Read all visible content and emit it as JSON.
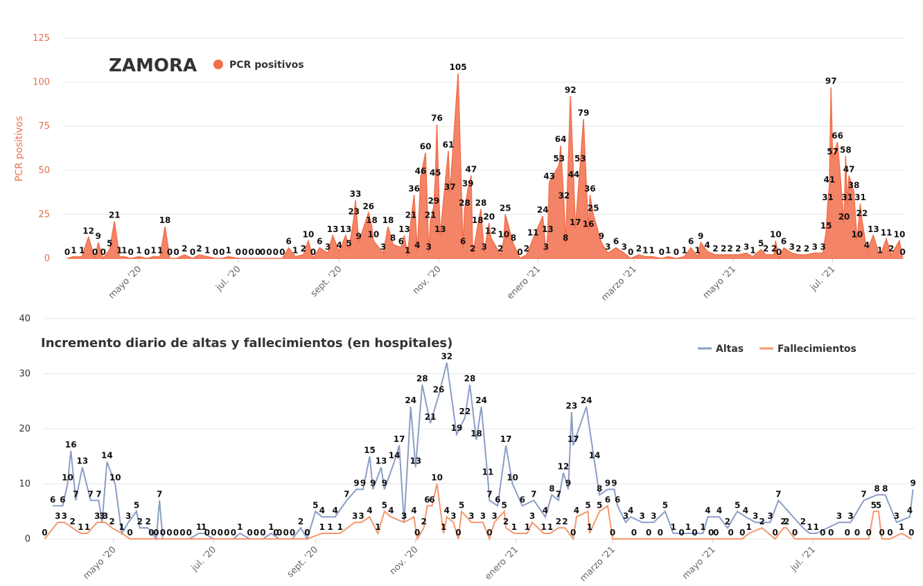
{
  "chart_data": [
    {
      "type": "area",
      "title": "ZAMORA",
      "y_label": "PCR positivos",
      "xlim": [
        14,
        531
      ],
      "ylim": [
        0,
        125
      ],
      "yticks": [
        0,
        25,
        50,
        75,
        100,
        125
      ],
      "grid": true,
      "xticks": [
        {
          "value": 61,
          "label": "mayo '20"
        },
        {
          "value": 122,
          "label": "jul. '20"
        },
        {
          "value": 184,
          "label": "sept. '20"
        },
        {
          "value": 245,
          "label": "nov. '20"
        },
        {
          "value": 306,
          "label": "enero '21"
        },
        {
          "value": 365,
          "label": "marzo '21"
        },
        {
          "value": 426,
          "label": "mayo '21"
        },
        {
          "value": 487,
          "label": "jul. '21"
        }
      ],
      "series": [
        {
          "name": "PCR positivos",
          "color": "#f26f4c",
          "x": [
            17,
            21,
            26,
            30,
            34,
            36,
            39,
            43,
            46,
            49,
            52,
            56,
            61,
            66,
            70,
            74,
            77,
            80,
            84,
            89,
            94,
            98,
            103,
            108,
            112,
            116,
            122,
            126,
            130,
            134,
            137,
            141,
            145,
            149,
            153,
            157,
            162,
            165,
            168,
            172,
            177,
            180,
            184,
            188,
            190,
            193,
            194,
            196,
            202,
            204,
            205,
            211,
            214,
            217,
            222,
            224,
            226,
            228,
            230,
            232,
            234,
            237,
            239,
            240,
            242,
            243,
            244,
            246,
            251,
            252,
            257,
            260,
            261,
            263,
            265,
            266,
            269,
            271,
            273,
            276,
            277,
            283,
            285,
            286,
            291,
            295,
            299,
            303,
            309,
            311,
            312,
            313,
            319,
            320,
            322,
            323,
            326,
            328,
            329,
            332,
            334,
            337,
            338,
            340,
            345,
            349,
            354,
            359,
            363,
            368,
            372,
            376,
            382,
            386,
            391,
            396,
            400,
            404,
            406,
            410,
            415,
            420,
            424,
            429,
            434,
            438,
            443,
            446,
            451,
            452,
            454,
            457,
            462,
            466,
            471,
            476,
            481,
            483,
            484,
            485,
            486,
            487,
            490,
            494,
            495,
            496,
            497,
            500,
            502,
            504,
            505,
            508,
            512,
            516,
            520,
            523,
            528,
            530
          ],
          "values": [
            0,
            1,
            1,
            12,
            0,
            9,
            0,
            5,
            21,
            1,
            1,
            0,
            1,
            0,
            1,
            1,
            18,
            0,
            0,
            2,
            0,
            2,
            1,
            0,
            0,
            1,
            0,
            0,
            0,
            0,
            0,
            0,
            0,
            0,
            6,
            1,
            2,
            10,
            0,
            6,
            3,
            13,
            4,
            13,
            5,
            23,
            33,
            9,
            26,
            18,
            10,
            3,
            18,
            8,
            6,
            13,
            1,
            21,
            36,
            4,
            46,
            60,
            3,
            21,
            29,
            45,
            76,
            13,
            61,
            37,
            105,
            6,
            28,
            39,
            47,
            2,
            18,
            28,
            3,
            20,
            12,
            2,
            10,
            25,
            8,
            0,
            2,
            11,
            24,
            3,
            13,
            43,
            53,
            64,
            32,
            8,
            92,
            44,
            17,
            53,
            79,
            16,
            36,
            25,
            9,
            3,
            6,
            3,
            0,
            2,
            1,
            1,
            0,
            1,
            0,
            1,
            6,
            1,
            9,
            4,
            2,
            2,
            2,
            2,
            3,
            1,
            5,
            2,
            2,
            10,
            0,
            6,
            3,
            2,
            2,
            3,
            3,
            15,
            31,
            41,
            97,
            57,
            66,
            20,
            58,
            31,
            47,
            38,
            10,
            31,
            22,
            4,
            13,
            1,
            11,
            2,
            10,
            0
          ]
        }
      ]
    },
    {
      "type": "line",
      "title": "Incremento diario de altas y fallecimientos (en hospitales)",
      "xlim": [
        18,
        549
      ],
      "ylim": [
        0,
        40
      ],
      "yticks": [
        0,
        10,
        20,
        30,
        40
      ],
      "grid": true,
      "xticks": [
        {
          "value": 61,
          "label": "mayo '20"
        },
        {
          "value": 122,
          "label": "jul. '20"
        },
        {
          "value": 184,
          "label": "sept. '20"
        },
        {
          "value": 245,
          "label": "nov. '20"
        },
        {
          "value": 306,
          "label": "enero '21"
        },
        {
          "value": 365,
          "label": "marzo '21"
        },
        {
          "value": 426,
          "label": "mayo '21"
        },
        {
          "value": 487,
          "label": "jul. '21"
        }
      ],
      "series": [
        {
          "name": "Altas",
          "color": "#8b9dc7",
          "x": [
            24,
            30,
            33,
            35,
            38,
            42,
            47,
            52,
            54,
            57,
            62,
            66,
            70,
            75,
            77,
            82,
            87,
            89,
            91,
            95,
            99,
            103,
            107,
            113,
            116,
            122,
            126,
            130,
            134,
            138,
            144,
            148,
            152,
            157,
            162,
            166,
            170,
            175,
            179,
            184,
            188,
            196,
            203,
            209,
            213,
            217,
            219,
            224,
            226,
            232,
            235,
            238,
            242,
            245,
            249,
            254,
            259,
            264,
            270,
            275,
            278,
            282,
            285,
            289,
            290,
            295,
            300,
            304,
            310,
            317,
            324,
            328,
            332,
            335,
            338,
            340,
            341,
            349,
            354,
            357,
            362,
            366,
            368,
            373,
            376,
            383,
            390,
            397,
            402,
            411,
            420,
            423,
            430,
            435,
            441,
            446,
            452,
            461,
            466,
            481,
            485,
            489,
            503,
            510,
            518,
            526,
            531,
            538,
            546,
            548
          ],
          "values": [
            6,
            6,
            10,
            16,
            7,
            13,
            7,
            7,
            3,
            14,
            10,
            1,
            3,
            5,
            2,
            2,
            0,
            7,
            0,
            0,
            0,
            0,
            0,
            1,
            1,
            0,
            0,
            0,
            0,
            1,
            0,
            0,
            0,
            1,
            0,
            0,
            0,
            2,
            0,
            5,
            4,
            4,
            7,
            9,
            9,
            15,
            9,
            13,
            9,
            14,
            17,
            3,
            24,
            13,
            28,
            21,
            26,
            32,
            19,
            22,
            28,
            18,
            24,
            11,
            7,
            6,
            17,
            10,
            6,
            7,
            4,
            8,
            7,
            12,
            9,
            23,
            17,
            24,
            14,
            8,
            9,
            9,
            6,
            3,
            4,
            3,
            3,
            5,
            1,
            1,
            1,
            4,
            4,
            2,
            5,
            4,
            3,
            3,
            7,
            2,
            1,
            1,
            3,
            3,
            7,
            8,
            8,
            3,
            4,
            9
          ]
        },
        {
          "name": "Fallecimientos",
          "color": "#f4976c",
          "x": [
            19,
            27,
            31,
            36,
            41,
            45,
            51,
            56,
            60,
            66,
            71,
            84,
            118,
            160,
            179,
            188,
            193,
            199,
            208,
            212,
            217,
            222,
            226,
            230,
            238,
            244,
            246,
            250,
            252,
            255,
            258,
            262,
            264,
            268,
            271,
            273,
            279,
            286,
            290,
            293,
            299,
            300,
            305,
            313,
            316,
            323,
            327,
            332,
            336,
            341,
            343,
            350,
            351,
            357,
            362,
            365,
            378,
            387,
            394,
            407,
            415,
            425,
            428,
            437,
            444,
            448,
            456,
            464,
            469,
            471,
            476,
            493,
            498,
            508,
            514,
            521,
            524,
            527,
            529,
            534,
            541,
            547
          ],
          "values": [
            0,
            3,
            3,
            2,
            1,
            1,
            3,
            3,
            2,
            1,
            0,
            0,
            0,
            0,
            0,
            1,
            1,
            1,
            3,
            3,
            4,
            1,
            5,
            4,
            3,
            4,
            0,
            2,
            6,
            6,
            10,
            1,
            4,
            3,
            0,
            5,
            3,
            3,
            0,
            3,
            5,
            2,
            1,
            1,
            3,
            1,
            1,
            2,
            2,
            0,
            4,
            5,
            1,
            5,
            6,
            0,
            0,
            0,
            0,
            0,
            0,
            0,
            0,
            0,
            0,
            1,
            2,
            0,
            2,
            2,
            0,
            0,
            0,
            0,
            0,
            0,
            5,
            5,
            0,
            0,
            1,
            0
          ]
        }
      ]
    }
  ]
}
